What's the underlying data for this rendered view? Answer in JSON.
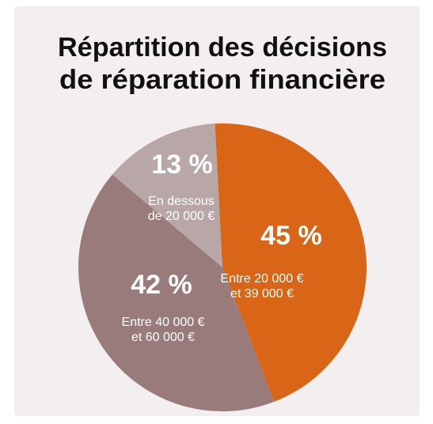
{
  "chart_data": {
    "type": "pie",
    "title": [
      "Répartition des décisions",
      "de réparation financière"
    ],
    "categories": [
      [
        "Entre 20 000 €",
        "et 39 000 €"
      ],
      [
        "Entre 40 000 €",
        "et 60 000 €"
      ],
      [
        "En dessous",
        "de 20 000 €"
      ]
    ],
    "values": [
      45,
      42,
      13
    ],
    "value_labels": [
      "45 %",
      "42 %",
      "13 %"
    ],
    "colors": [
      "#d96516",
      "#9a7b7b",
      "#b9a6a6"
    ]
  }
}
